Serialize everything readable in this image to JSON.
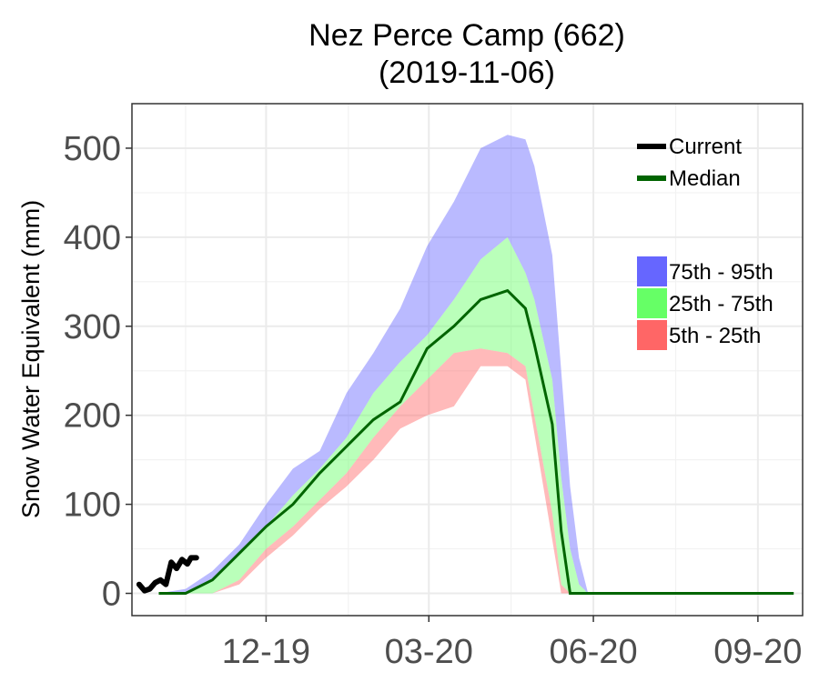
{
  "chart_data": {
    "type": "area",
    "title": "Nez Perce Camp (662)",
    "subtitle": "(2019-11-06)",
    "xlabel": "",
    "ylabel": "Snow Water Equivalent (mm)",
    "x_ticks": [
      "12-19",
      "03-20",
      "06-20",
      "09-20"
    ],
    "y_ticks": [
      0,
      100,
      200,
      300,
      400,
      500
    ],
    "ylim": [
      -25,
      550
    ],
    "xlim": [
      "2019-10-01",
      "2020-10-10"
    ],
    "grid": true,
    "legend": {
      "lines": [
        {
          "name": "Current",
          "color": "#000000"
        },
        {
          "name": "Median",
          "color": "#006400"
        }
      ],
      "bands": [
        {
          "name": "75th - 95th",
          "color": "#6666ff"
        },
        {
          "name": "25th - 75th",
          "color": "#66ff66"
        },
        {
          "name": "5th - 25th",
          "color": "#ff6666"
        }
      ],
      "position": "right"
    },
    "x": [
      "2019-10-16",
      "2019-10-31",
      "2019-11-15",
      "2019-11-30",
      "2019-12-15",
      "2019-12-30",
      "2020-01-14",
      "2020-01-29",
      "2020-02-13",
      "2020-02-28",
      "2020-03-14",
      "2020-03-29",
      "2020-04-13",
      "2020-04-28",
      "2020-05-08",
      "2020-05-13",
      "2020-05-23",
      "2020-05-28",
      "2020-06-02",
      "2020-06-07",
      "2020-06-12",
      "2020-06-17",
      "2020-06-22",
      "2020-07-15",
      "2020-08-15",
      "2020-09-15",
      "2020-10-05"
    ],
    "series": [
      {
        "name": "Current",
        "x": [
          "2019-10-05",
          "2019-10-08",
          "2019-10-11",
          "2019-10-14",
          "2019-10-17",
          "2019-10-20",
          "2019-10-23",
          "2019-10-26",
          "2019-10-29",
          "2019-11-01",
          "2019-11-03",
          "2019-11-06"
        ],
        "values": [
          10,
          3,
          5,
          12,
          15,
          10,
          35,
          28,
          38,
          33,
          40,
          40
        ]
      },
      {
        "name": "Median",
        "values": [
          0,
          0,
          15,
          45,
          75,
          100,
          135,
          165,
          195,
          215,
          275,
          300,
          330,
          340,
          320,
          280,
          190,
          70,
          0,
          0,
          0,
          0,
          0,
          0,
          0,
          0,
          0
        ]
      },
      {
        "name": "5th",
        "values": [
          0,
          0,
          0,
          10,
          40,
          65,
          95,
          120,
          150,
          185,
          200,
          210,
          255,
          255,
          240,
          180,
          60,
          0,
          0,
          0,
          0,
          0,
          0,
          0,
          0,
          0,
          0
        ]
      },
      {
        "name": "25th",
        "values": [
          0,
          0,
          0,
          15,
          50,
          75,
          105,
          135,
          175,
          210,
          240,
          270,
          275,
          270,
          255,
          200,
          90,
          10,
          0,
          0,
          0,
          0,
          0,
          0,
          0,
          0,
          0
        ]
      },
      {
        "name": "75th",
        "values": [
          0,
          0,
          15,
          45,
          75,
          110,
          140,
          175,
          225,
          260,
          290,
          330,
          375,
          400,
          360,
          330,
          240,
          130,
          50,
          10,
          0,
          0,
          0,
          0,
          0,
          0,
          0
        ]
      },
      {
        "name": "95th",
        "values": [
          0,
          5,
          25,
          55,
          100,
          140,
          160,
          225,
          270,
          320,
          390,
          440,
          500,
          515,
          510,
          480,
          380,
          250,
          120,
          40,
          0,
          0,
          0,
          0,
          0,
          0,
          0
        ]
      }
    ]
  }
}
